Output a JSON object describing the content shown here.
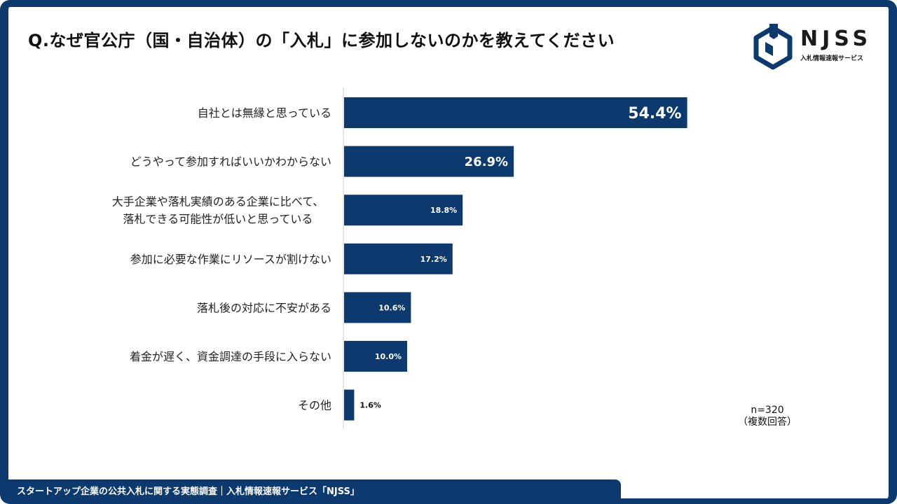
{
  "title": "Q.なぜ官公庁（国・自治体）の「入札」に参加しないのかを教えてください",
  "logo": {
    "name": "NJSS",
    "subtitle": "入札情報速報サービス"
  },
  "footer": {
    "text": "スタートアップ企業の公共入札に関する実態調査｜入札情報速報サービス「NJSS」"
  },
  "note": {
    "n": "n=320",
    "multi": "（複数回答）"
  },
  "colors": {
    "bar": "#0d3a6e",
    "frame": "#0d3a6e",
    "axis": "#cccccc"
  },
  "chart_data": {
    "type": "bar",
    "orientation": "horizontal",
    "categories": [
      [
        "自社とは無縁と思っている"
      ],
      [
        "どうやって参加すればいいかわからない"
      ],
      [
        "大手企業や落札実績のある企業に比べて、",
        "落札できる可能性が低いと思っている"
      ],
      [
        "参加に必要な作業にリソースが割けない"
      ],
      [
        "落札後の対応に不安がある"
      ],
      [
        "着金が遅く、資金調達の手段に入らない"
      ],
      [
        "その他"
      ]
    ],
    "values": [
      54.4,
      26.9,
      18.8,
      17.2,
      10.6,
      10.0,
      1.6
    ],
    "labels": [
      "54.4%",
      "26.9%",
      "18.8%",
      "17.2%",
      "10.6%",
      "10.0%",
      "1.6%"
    ],
    "unit": "%",
    "xlim": [
      0,
      100
    ],
    "grid": false,
    "legend": "none"
  }
}
